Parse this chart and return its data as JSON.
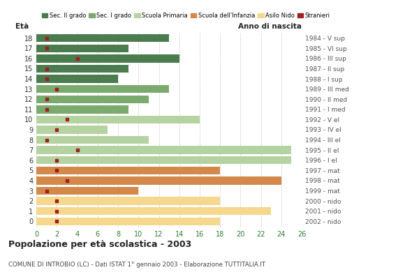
{
  "title": "Popolazione per età scolastica - 2003",
  "subtitle": "COMUNE DI INTROBIO (LC) - Dati ISTAT 1° gennaio 2003 - Elaborazione TUTTITALIA.IT",
  "ages": [
    18,
    17,
    16,
    15,
    14,
    13,
    12,
    11,
    10,
    9,
    8,
    7,
    6,
    5,
    4,
    3,
    2,
    1,
    0
  ],
  "years": [
    "1984 - V sup",
    "1985 - VI sup",
    "1986 - III sup",
    "1987 - II sup",
    "1988 - I sup",
    "1989 - III med",
    "1990 - II med",
    "1991 - I med",
    "1992 - V el",
    "1993 - IV el",
    "1994 - III el",
    "1995 - II el",
    "1996 - I el",
    "1997 - mat",
    "1998 - mat",
    "1999 - mat",
    "2000 - nido",
    "2001 - nido",
    "2002 - nido"
  ],
  "values": [
    13,
    9,
    14,
    9,
    8,
    13,
    11,
    9,
    16,
    7,
    11,
    25,
    25,
    18,
    24,
    10,
    18,
    23,
    18
  ],
  "stranieri_x": [
    1,
    1,
    4,
    1,
    1,
    2,
    1,
    1,
    3,
    2,
    1,
    4,
    2,
    2,
    3,
    1,
    2,
    2,
    2
  ],
  "bar_colors": [
    "#4a7c4e",
    "#4a7c4e",
    "#4a7c4e",
    "#4a7c4e",
    "#4a7c4e",
    "#7aaa6d",
    "#7aaa6d",
    "#7aaa6d",
    "#b5d3a0",
    "#b5d3a0",
    "#b5d3a0",
    "#b5d3a0",
    "#b5d3a0",
    "#d4884a",
    "#d4884a",
    "#d4884a",
    "#f5d78e",
    "#f5d78e",
    "#f5d78e"
  ],
  "colors": {
    "sec2": "#4a7c4e",
    "sec1": "#7aaa6d",
    "primaria": "#b5d3a0",
    "infanzia": "#d4884a",
    "nido": "#f5d78e",
    "stranieri": "#a02020"
  },
  "xlim": [
    0,
    26
  ],
  "xticks": [
    0,
    2,
    4,
    6,
    8,
    10,
    12,
    14,
    16,
    18,
    20,
    22,
    24,
    26
  ],
  "background_color": "#ffffff",
  "grid_color": "#cccccc"
}
